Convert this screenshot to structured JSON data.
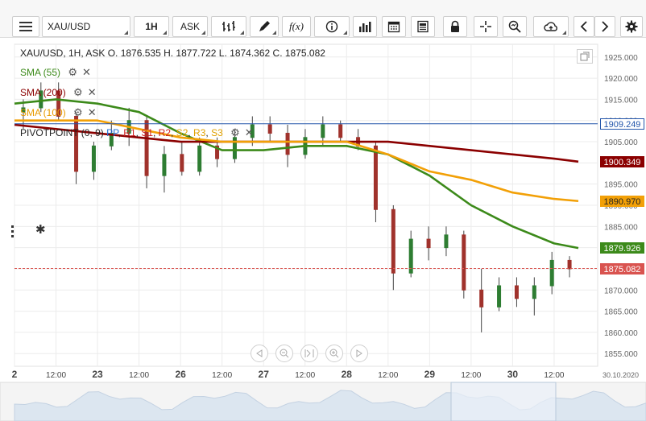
{
  "toolbar": {
    "symbol": "XAU/USD",
    "timeframe": "1H",
    "price_side": "ASK",
    "fx_label": "f(x)"
  },
  "info": {
    "text": "XAU/USD, 1H, ASK   O. 1876.535 H. 1877.722 L. 1874.362 C. 1875.082"
  },
  "indicators": [
    {
      "label": "SMA (55)",
      "color": "#3c8a1a"
    },
    {
      "label": "SMA (200)",
      "color": "#8b0000"
    },
    {
      "label": "SMA (100)",
      "color": "#f2a007"
    }
  ],
  "pivot": {
    "label": "PIVOTPOINT (0, 9)",
    "items": [
      {
        "label": "PP",
        "color": "#1f6fd6"
      },
      {
        "label": "R1",
        "color": "#cc2222"
      },
      {
        "label": "S1",
        "color": "#cc2222"
      },
      {
        "label": "R2",
        "color": "#cc2222"
      },
      {
        "label": "S2",
        "color": "#e0a000"
      },
      {
        "label": "R3",
        "color": "#e0a000"
      },
      {
        "label": "S3",
        "color": "#e0a000"
      }
    ]
  },
  "price_tags": [
    {
      "label": "1909.249",
      "value": 1909.249,
      "bg": "#ffffff",
      "fg": "#2255aa",
      "border": "#2255aa"
    },
    {
      "label": "1900.349",
      "value": 1900.349,
      "bg": "#8b0000",
      "fg": "#ffffff",
      "border": "#8b0000"
    },
    {
      "label": "1890.970",
      "value": 1890.97,
      "bg": "#f2a007",
      "fg": "#222222",
      "border": "#f2a007"
    },
    {
      "label": "1879.926",
      "value": 1879.926,
      "bg": "#3c8a1a",
      "fg": "#ffffff",
      "border": "#3c8a1a"
    },
    {
      "label": "1875.082",
      "value": 1875.082,
      "bg": "#d9534f",
      "fg": "#ffffff",
      "border": "#d9534f"
    }
  ],
  "chart_data": {
    "type": "line",
    "title": "XAU/USD, 1H, ASK",
    "ylim": [
      1852,
      1928
    ],
    "y_ticks": [
      1925,
      1920,
      1915,
      1910,
      1905,
      1900,
      1895,
      1890,
      1885,
      1880,
      1875,
      1870,
      1865,
      1860,
      1855
    ],
    "y_tick_labels": [
      "1925.000",
      "1920.000",
      "1915.000",
      "1910.000",
      "1905.000",
      "1900.000",
      "1895.000",
      "1890.000",
      "1885.000",
      "1880.000",
      "1875.000",
      "1870.000",
      "1865.000",
      "1860.000",
      "1855.000"
    ],
    "x_ticks": [
      {
        "label": "2",
        "x": 0,
        "bold": true
      },
      {
        "label": "12:00",
        "x": 12,
        "bold": false
      },
      {
        "label": "23",
        "x": 24,
        "bold": true
      },
      {
        "label": "12:00",
        "x": 36,
        "bold": false
      },
      {
        "label": "26",
        "x": 48,
        "bold": true
      },
      {
        "label": "12:00",
        "x": 60,
        "bold": false
      },
      {
        "label": "27",
        "x": 72,
        "bold": true
      },
      {
        "label": "12:00",
        "x": 84,
        "bold": false
      },
      {
        "label": "28",
        "x": 96,
        "bold": true
      },
      {
        "label": "12:00",
        "x": 108,
        "bold": false
      },
      {
        "label": "29",
        "x": 120,
        "bold": true
      },
      {
        "label": "12:00",
        "x": 132,
        "bold": false
      },
      {
        "label": "30",
        "x": 144,
        "bold": true
      },
      {
        "label": "12:00",
        "x": 156,
        "bold": false
      }
    ],
    "x_end_label": "30.10.2020",
    "hlines": [
      {
        "name": "PP",
        "value": 1909.249,
        "color": "#2255aa",
        "dash": false
      },
      {
        "name": "last",
        "value": 1875.082,
        "color": "#d9534f",
        "dash": true
      }
    ],
    "series": [
      {
        "name": "SMA (55)",
        "color": "#3c8a1a",
        "x": [
          0,
          12,
          24,
          36,
          48,
          60,
          72,
          84,
          96,
          108,
          120,
          132,
          144,
          156,
          163
        ],
        "values": [
          1914,
          1915,
          1914,
          1912,
          1907,
          1903,
          1903,
          1904,
          1904,
          1902,
          1897,
          1890,
          1885,
          1881,
          1879.9
        ]
      },
      {
        "name": "SMA (200)",
        "color": "#8b0000",
        "x": [
          0,
          24,
          48,
          72,
          96,
          108,
          120,
          132,
          144,
          156,
          163
        ],
        "values": [
          1909,
          1907,
          1905,
          1905,
          1905,
          1905,
          1904,
          1903,
          1902,
          1901,
          1900.3
        ]
      },
      {
        "name": "SMA (100)",
        "color": "#f2a007",
        "x": [
          0,
          24,
          48,
          60,
          72,
          84,
          96,
          108,
          120,
          132,
          144,
          156,
          163
        ],
        "values": [
          1910,
          1910,
          1906,
          1905,
          1905,
          1905,
          1905,
          1902,
          1898,
          1896,
          1893,
          1891.5,
          1891
        ]
      }
    ],
    "candles_ohlc_sample": [
      [
        1912,
        1915,
        1908,
        1913
      ],
      [
        1913,
        1919,
        1912,
        1917
      ],
      [
        1917,
        1919,
        1910,
        1911
      ],
      [
        1911,
        1912,
        1895,
        1898
      ],
      [
        1898,
        1905,
        1896,
        1904
      ],
      [
        1904,
        1910,
        1903,
        1907
      ],
      [
        1907,
        1913,
        1904,
        1910
      ],
      [
        1910,
        1911,
        1894,
        1897
      ],
      [
        1897,
        1904,
        1893,
        1902
      ],
      [
        1902,
        1905,
        1897,
        1898
      ],
      [
        1898,
        1906,
        1897,
        1904
      ],
      [
        1904,
        1906,
        1899,
        1901
      ],
      [
        1901,
        1908,
        1900,
        1906
      ],
      [
        1906,
        1911,
        1904,
        1909
      ],
      [
        1909,
        1911,
        1905,
        1907
      ],
      [
        1907,
        1909,
        1899,
        1902
      ],
      [
        1902,
        1908,
        1901,
        1906
      ],
      [
        1906,
        1911,
        1904,
        1909
      ],
      [
        1909,
        1910,
        1905,
        1906
      ],
      [
        1906,
        1908,
        1903,
        1904
      ],
      [
        1904,
        1905,
        1886,
        1889
      ],
      [
        1889,
        1890,
        1870,
        1874
      ],
      [
        1874,
        1884,
        1873,
        1882
      ],
      [
        1882,
        1885,
        1877,
        1880
      ],
      [
        1880,
        1885,
        1878,
        1883
      ],
      [
        1883,
        1884,
        1868,
        1870
      ],
      [
        1870,
        1875,
        1860,
        1866
      ],
      [
        1866,
        1873,
        1865,
        1871
      ],
      [
        1871,
        1873,
        1866,
        1868
      ],
      [
        1868,
        1873,
        1864,
        1871
      ],
      [
        1871,
        1879,
        1869,
        1877
      ],
      [
        1877,
        1878,
        1873,
        1875
      ]
    ]
  }
}
